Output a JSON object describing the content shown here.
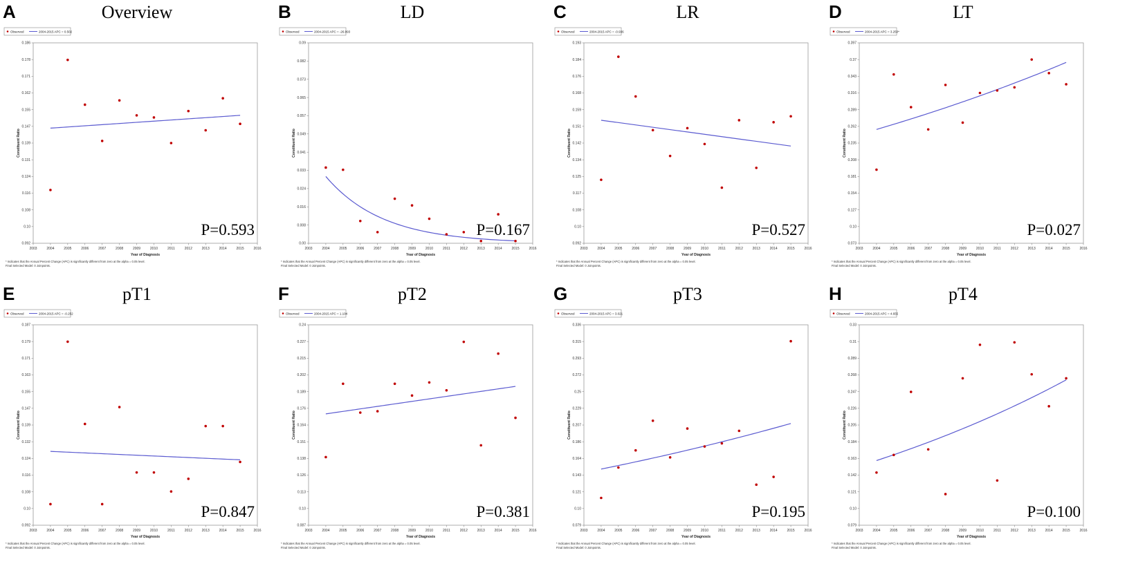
{
  "chart_data": [
    {
      "panel": "A",
      "title": "Overview",
      "type": "scatter",
      "legend": [
        "Observed",
        "2004-2015 APC = 0.502"
      ],
      "ylabel": "Constituent Ratio",
      "xlabel": "Year of Diagnosis",
      "xticks": [
        "2003",
        "2004",
        "2005",
        "2006",
        "2007",
        "2008",
        "2009",
        "2010",
        "2011",
        "2012",
        "2013",
        "2014",
        "2015",
        "2016"
      ],
      "yticks": [
        "0.092",
        "0.10",
        "0.108",
        "0.116",
        "0.124",
        "0.131",
        "0.139",
        "0.147",
        "0.155",
        "0.162",
        "0.171",
        "0.178",
        "0.186"
      ],
      "ylim": [
        0.092,
        0.186
      ],
      "x": [
        2004,
        2005,
        2006,
        2007,
        2008,
        2009,
        2010,
        2011,
        2012,
        2013,
        2014,
        2015
      ],
      "observed": [
        0.117,
        0.178,
        0.157,
        0.14,
        0.159,
        0.152,
        0.151,
        0.139,
        0.154,
        0.145,
        0.16,
        0.148
      ],
      "fit": {
        "kind": "linear",
        "start": 0.146,
        "end": 0.152
      },
      "p_value": "P=0.593",
      "footnote": [
        "* Indicates that the Annual Percent Change (APC) is significantly different from zero at the alpha = 0.05 level.",
        "Final Selected Model: 0 Joinpoints."
      ]
    },
    {
      "panel": "B",
      "title": "LD",
      "type": "scatter",
      "legend": [
        "Observed",
        "2004-2015 APC = -26.093"
      ],
      "ylabel": "Constituent Ratio",
      "xlabel": "Year of Diagnosis",
      "xticks": [
        "2003",
        "2004",
        "2005",
        "2006",
        "2007",
        "2008",
        "2009",
        "2010",
        "2011",
        "2012",
        "2013",
        "2014",
        "2015",
        "2016"
      ],
      "yticks": [
        "0.00",
        "0.008",
        "0.016",
        "0.024",
        "0.033",
        "0.041",
        "0.049",
        "0.057",
        "0.065",
        "0.073",
        "0.082",
        "0.09"
      ],
      "ylim": [
        0.0,
        0.09
      ],
      "x": [
        2004,
        2005,
        2006,
        2007,
        2008,
        2009,
        2010,
        2011,
        2012,
        2013,
        2014,
        2015
      ],
      "observed": [
        0.034,
        0.033,
        0.01,
        0.005,
        0.02,
        0.017,
        0.011,
        0.004,
        0.005,
        0.001,
        0.013,
        0.001
      ],
      "fit": {
        "kind": "exp",
        "start": 0.03,
        "rate": -0.261
      },
      "p_value": "P=0.167",
      "footnote": [
        "* Indicates that the Annual Percent Change (APC) is significantly different from zero at the alpha = 0.05 level.",
        "Final Selected Model: 0 Joinpoints."
      ]
    },
    {
      "panel": "C",
      "title": "LR",
      "type": "scatter",
      "legend": [
        "Observed",
        "2004-2015 APC = -0.936"
      ],
      "ylabel": "Constituent Ratio",
      "xlabel": "Year of Diagnosis",
      "xticks": [
        "2003",
        "2004",
        "2005",
        "2006",
        "2007",
        "2008",
        "2009",
        "2010",
        "2011",
        "2012",
        "2013",
        "2014",
        "2015",
        "2016"
      ],
      "yticks": [
        "0.092",
        "0.10",
        "0.108",
        "0.117",
        "0.125",
        "0.134",
        "0.142",
        "0.151",
        "0.159",
        "0.168",
        "0.176",
        "0.184",
        "0.193"
      ],
      "ylim": [
        0.092,
        0.193
      ],
      "x": [
        2004,
        2005,
        2006,
        2007,
        2008,
        2009,
        2010,
        2011,
        2012,
        2013,
        2014,
        2015
      ],
      "observed": [
        0.124,
        0.186,
        0.166,
        0.149,
        0.136,
        0.15,
        0.142,
        0.12,
        0.154,
        0.13,
        0.153,
        0.156
      ],
      "fit": {
        "kind": "linear",
        "start": 0.154,
        "end": 0.141
      },
      "p_value": "P=0.527",
      "footnote": [
        "* Indicates that the Annual Percent Change (APC) is significantly different from zero at the alpha = 0.05 level.",
        "Final Selected Model: 0 Joinpoints."
      ]
    },
    {
      "panel": "D",
      "title": "LT",
      "type": "scatter",
      "legend": [
        "Observed",
        "2004-2015 APC = 3.250*"
      ],
      "ylabel": "Constituent Ratio",
      "xlabel": "Year of Diagnosis",
      "xticks": [
        "2003",
        "2004",
        "2005",
        "2006",
        "2007",
        "2008",
        "2009",
        "2010",
        "2011",
        "2012",
        "2013",
        "2014",
        "2015",
        "2016"
      ],
      "yticks": [
        "0.073",
        "0.10",
        "0.127",
        "0.154",
        "0.181",
        "0.208",
        "0.235",
        "0.262",
        "0.289",
        "0.316",
        "0.343",
        "0.37",
        "0.397"
      ],
      "ylim": [
        0.073,
        0.397
      ],
      "x": [
        2004,
        2005,
        2006,
        2007,
        2008,
        2009,
        2010,
        2011,
        2012,
        2013,
        2014,
        2015
      ],
      "observed": [
        0.192,
        0.346,
        0.293,
        0.257,
        0.329,
        0.268,
        0.316,
        0.32,
        0.325,
        0.37,
        0.348,
        0.33
      ],
      "fit": {
        "kind": "exp",
        "start": 0.257,
        "rate": 0.0325
      },
      "p_value": "P=0.027",
      "footnote": [
        "* Indicates that the Annual Percent Change (APC) is significantly different from zero at the alpha = 0.05 level.",
        "Final Selected Model: 0 Joinpoints."
      ]
    },
    {
      "panel": "E",
      "title": "pT1",
      "type": "scatter",
      "legend": [
        "Observed",
        "2004-2015 APC = -0.252"
      ],
      "ylabel": "Constituent Ratio",
      "xlabel": "Year of Diagnosis",
      "xticks": [
        "2003",
        "2004",
        "2005",
        "2006",
        "2007",
        "2008",
        "2009",
        "2010",
        "2011",
        "2012",
        "2013",
        "2014",
        "2015",
        "2016"
      ],
      "yticks": [
        "0.092",
        "0.10",
        "0.108",
        "0.116",
        "0.124",
        "0.132",
        "0.139",
        "0.147",
        "0.155",
        "0.163",
        "0.171",
        "0.179",
        "0.187"
      ],
      "ylim": [
        0.092,
        0.187
      ],
      "x": [
        2004,
        2005,
        2006,
        2007,
        2008,
        2009,
        2010,
        2011,
        2012,
        2013,
        2014,
        2015
      ],
      "observed": [
        0.102,
        0.179,
        0.14,
        0.102,
        0.148,
        0.117,
        0.117,
        0.108,
        0.114,
        0.139,
        0.139,
        0.122
      ],
      "fit": {
        "kind": "linear",
        "start": 0.127,
        "end": 0.123
      },
      "p_value": "P=0.847",
      "footnote": [
        "* Indicates that the Annual Percent Change (APC) is significantly different from zero at the alpha = 0.05 level.",
        "Final Selected Model: 0 Joinpoints."
      ]
    },
    {
      "panel": "F",
      "title": "pT2",
      "type": "scatter",
      "legend": [
        "Observed",
        "2004-2015 APC = 1.104"
      ],
      "ylabel": "Constituent Ratio",
      "xlabel": "Year of Diagnosis",
      "xticks": [
        "2003",
        "2004",
        "2005",
        "2006",
        "2007",
        "2008",
        "2009",
        "2010",
        "2011",
        "2012",
        "2013",
        "2014",
        "2015",
        "2016"
      ],
      "yticks": [
        "0.087",
        "0.10",
        "0.113",
        "0.126",
        "0.138",
        "0.151",
        "0.164",
        "0.176",
        "0.189",
        "0.202",
        "0.215",
        "0.227",
        "0.24"
      ],
      "ylim": [
        0.087,
        0.24
      ],
      "x": [
        2004,
        2005,
        2006,
        2007,
        2008,
        2009,
        2010,
        2011,
        2012,
        2013,
        2014,
        2015
      ],
      "observed": [
        0.139,
        0.195,
        0.173,
        0.174,
        0.195,
        0.186,
        0.196,
        0.19,
        0.227,
        0.148,
        0.218,
        0.169
      ],
      "fit": {
        "kind": "linear",
        "start": 0.172,
        "end": 0.193
      },
      "p_value": "P=0.381",
      "footnote": [
        "* Indicates that the Annual Percent Change (APC) is significantly different from zero at the alpha = 0.05 level.",
        "Final Selected Model: 0 Joinpoints."
      ]
    },
    {
      "panel": "G",
      "title": "pT3",
      "type": "scatter",
      "legend": [
        "Observed",
        "2004-2015 APC = 3.021"
      ],
      "ylabel": "Constituent Ratio",
      "xlabel": "Year of Diagnosis",
      "xticks": [
        "2003",
        "2004",
        "2005",
        "2006",
        "2007",
        "2008",
        "2009",
        "2010",
        "2011",
        "2012",
        "2013",
        "2014",
        "2015",
        "2016"
      ],
      "yticks": [
        "0.079",
        "0.10",
        "0.121",
        "0.143",
        "0.164",
        "0.186",
        "0.207",
        "0.229",
        "0.25",
        "0.272",
        "0.293",
        "0.315",
        "0.336"
      ],
      "ylim": [
        0.079,
        0.336
      ],
      "x": [
        2004,
        2005,
        2006,
        2007,
        2008,
        2009,
        2010,
        2011,
        2012,
        2013,
        2014,
        2015
      ],
      "observed": [
        0.114,
        0.153,
        0.175,
        0.213,
        0.166,
        0.203,
        0.18,
        0.184,
        0.2,
        0.131,
        0.141,
        0.315
      ],
      "fit": {
        "kind": "exp",
        "start": 0.151,
        "rate": 0.0302
      },
      "p_value": "P=0.195",
      "footnote": [
        "* Indicates that the Annual Percent Change (APC) is significantly different from zero at the alpha = 0.05 level.",
        "Final Selected Model: 0 Joinpoints."
      ]
    },
    {
      "panel": "H",
      "title": "pT4",
      "type": "scatter",
      "legend": [
        "Observed",
        "2004-2015 APC = 4.655"
      ],
      "ylabel": "Constituent Ratio",
      "xlabel": "Year of Diagnosis",
      "xticks": [
        "2003",
        "2004",
        "2005",
        "2006",
        "2007",
        "2008",
        "2009",
        "2010",
        "2011",
        "2012",
        "2013",
        "2014",
        "2015",
        "2016"
      ],
      "yticks": [
        "0.079",
        "0.10",
        "0.121",
        "0.142",
        "0.163",
        "0.184",
        "0.205",
        "0.226",
        "0.247",
        "0.268",
        "0.289",
        "0.31",
        "0.33"
      ],
      "ylim": [
        0.079,
        0.33
      ],
      "x": [
        2004,
        2005,
        2006,
        2007,
        2008,
        2009,
        2010,
        2011,
        2012,
        2013,
        2014,
        2015
      ],
      "observed": [
        0.145,
        0.167,
        0.246,
        0.174,
        0.118,
        0.263,
        0.305,
        0.135,
        0.308,
        0.268,
        0.228,
        0.263
      ],
      "fit": {
        "kind": "exp",
        "start": 0.16,
        "rate": 0.0455
      },
      "p_value": "P=0.100",
      "footnote": [
        "* Indicates that the Annual Percent Change (APC) is significantly different from zero at the alpha = 0.05 level.",
        "Final Selected Model: 0 Joinpoints."
      ]
    }
  ]
}
